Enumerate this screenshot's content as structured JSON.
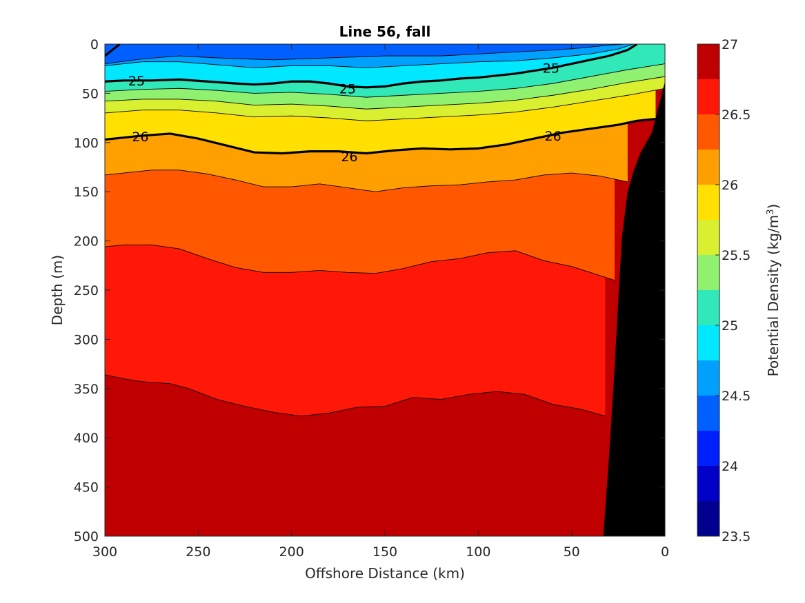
{
  "chart_data": {
    "type": "contour",
    "title": "Line 56, fall",
    "xlabel": "Offshore Distance (km)",
    "ylabel": "Depth (m)",
    "colorbar_label": "Potential Density (kg/m",
    "colorbar_label_sup": "3",
    "colorbar_label_end": ")",
    "xlim": [
      300,
      0
    ],
    "ylim": [
      0,
      500
    ],
    "x_reversed": true,
    "y_reversed": true,
    "xticks": [
      300,
      250,
      200,
      150,
      100,
      50,
      0
    ],
    "xtick_labels": [
      "300",
      "250",
      "200",
      "150",
      "100",
      "50",
      "0"
    ],
    "yticks": [
      0,
      50,
      100,
      150,
      200,
      250,
      300,
      350,
      400,
      450,
      500
    ],
    "ytick_labels": [
      "0",
      "50",
      "100",
      "150",
      "200",
      "250",
      "300",
      "350",
      "400",
      "450",
      "500"
    ],
    "colorbar_ticks": [
      23.5,
      24,
      24.5,
      25,
      25.5,
      26,
      26.5,
      27
    ],
    "colorbar_tick_labels": [
      "23.5",
      "24",
      "24.5",
      "25",
      "25.5",
      "26",
      "26.5",
      "27"
    ],
    "color_levels": [
      {
        "range": [
          23.5,
          23.75
        ],
        "color": "#00008F"
      },
      {
        "range": [
          23.75,
          24.0
        ],
        "color": "#0000C6"
      },
      {
        "range": [
          24.0,
          24.25
        ],
        "color": "#0020FF"
      },
      {
        "range": [
          24.25,
          24.5
        ],
        "color": "#0060FF"
      },
      {
        "range": [
          24.5,
          24.75
        ],
        "color": "#00A0FF"
      },
      {
        "range": [
          24.75,
          25.0
        ],
        "color": "#00E8FF"
      },
      {
        "range": [
          25.0,
          25.25
        ],
        "color": "#30E8B8"
      },
      {
        "range": [
          25.25,
          25.5
        ],
        "color": "#90F070"
      },
      {
        "range": [
          25.5,
          25.75
        ],
        "color": "#D8F030"
      },
      {
        "range": [
          25.75,
          26.0
        ],
        "color": "#FFE000"
      },
      {
        "range": [
          26.0,
          26.25
        ],
        "color": "#FFA000"
      },
      {
        "range": [
          26.25,
          26.5
        ],
        "color": "#FF5800"
      },
      {
        "range": [
          26.5,
          26.75
        ],
        "color": "#FF1808"
      },
      {
        "range": [
          26.75,
          27.0
        ],
        "color": "#C00000"
      }
    ],
    "isopycnals": [
      {
        "sigma": 24.5,
        "labeled": false,
        "x": [
          300,
          280,
          260,
          240,
          210,
          180,
          150,
          120,
          100,
          80,
          60,
          45,
          30,
          22
        ],
        "depth": [
          20,
          15,
          12,
          14,
          16,
          14,
          12,
          12,
          10,
          8,
          6,
          4,
          1,
          0
        ]
      },
      {
        "sigma": 24.75,
        "labeled": false,
        "x": [
          300,
          280,
          260,
          240,
          220,
          200,
          180,
          160,
          140,
          120,
          100,
          80,
          60,
          40,
          25,
          17
        ],
        "depth": [
          22,
          18,
          18,
          21,
          24,
          22,
          22,
          24,
          22,
          20,
          18,
          17,
          14,
          10,
          5,
          0
        ]
      },
      {
        "sigma": 25.0,
        "labeled": true,
        "label_at": [
          [
            283,
            37
          ],
          [
            170,
            45
          ],
          [
            61,
            24
          ]
        ],
        "x": [
          300,
          290,
          275,
          260,
          245,
          230,
          220,
          210,
          200,
          190,
          180,
          170,
          160,
          150,
          140,
          130,
          120,
          110,
          100,
          90,
          80,
          70,
          60,
          50,
          40,
          30,
          20,
          15
        ],
        "depth": [
          38,
          37,
          37,
          36,
          38,
          40,
          41,
          40,
          38,
          38,
          40,
          43,
          44,
          43,
          40,
          38,
          37,
          35,
          34,
          32,
          30,
          27,
          24,
          20,
          16,
          12,
          6,
          0
        ]
      },
      {
        "sigma": 25.25,
        "labeled": false,
        "x": [
          300,
          280,
          260,
          240,
          220,
          200,
          180,
          160,
          140,
          120,
          100,
          80,
          60,
          40,
          20,
          0
        ],
        "depth": [
          48,
          46,
          45,
          47,
          50,
          49,
          51,
          54,
          52,
          50,
          48,
          45,
          40,
          33,
          26,
          20
        ]
      },
      {
        "sigma": 25.5,
        "labeled": false,
        "x": [
          300,
          280,
          260,
          240,
          220,
          200,
          180,
          160,
          140,
          120,
          100,
          80,
          60,
          40,
          20,
          0
        ],
        "depth": [
          58,
          56,
          56,
          58,
          62,
          61,
          63,
          66,
          64,
          62,
          60,
          57,
          52,
          46,
          39,
          33
        ]
      },
      {
        "sigma": 25.75,
        "labeled": false,
        "x": [
          300,
          280,
          260,
          240,
          220,
          200,
          180,
          160,
          140,
          120,
          100,
          80,
          60,
          40,
          20,
          0
        ],
        "depth": [
          70,
          67,
          67,
          70,
          74,
          73,
          75,
          78,
          76,
          74,
          72,
          69,
          64,
          58,
          52,
          45
        ]
      },
      {
        "sigma": 26.0,
        "labeled": true,
        "label_at": [
          [
            281,
            94
          ],
          [
            169,
            114
          ],
          [
            60,
            93
          ]
        ],
        "x": [
          300,
          290,
          280,
          265,
          250,
          235,
          220,
          205,
          190,
          175,
          160,
          145,
          130,
          115,
          100,
          85,
          70,
          55,
          40,
          25,
          15,
          5
        ],
        "depth": [
          97,
          95,
          93,
          91,
          96,
          103,
          110,
          111,
          109,
          109,
          111,
          108,
          106,
          107,
          106,
          102,
          96,
          90,
          86,
          82,
          78,
          76
        ]
      },
      {
        "sigma": 26.25,
        "labeled": false,
        "x": [
          300,
          290,
          275,
          260,
          245,
          230,
          215,
          200,
          185,
          170,
          155,
          140,
          125,
          110,
          95,
          80,
          65,
          50,
          35,
          20
        ],
        "depth": [
          133,
          131,
          128,
          128,
          132,
          138,
          145,
          145,
          142,
          146,
          150,
          146,
          144,
          143,
          140,
          138,
          133,
          131,
          134,
          140
        ]
      },
      {
        "sigma": 26.5,
        "labeled": false,
        "x": [
          300,
          290,
          275,
          260,
          245,
          230,
          215,
          200,
          185,
          170,
          155,
          140,
          125,
          110,
          95,
          80,
          65,
          50,
          40,
          27
        ],
        "depth": [
          206,
          204,
          204,
          208,
          218,
          227,
          232,
          232,
          230,
          232,
          233,
          228,
          221,
          218,
          212,
          210,
          220,
          226,
          232,
          240
        ]
      },
      {
        "sigma": 26.75,
        "labeled": false,
        "x": [
          300,
          290,
          280,
          265,
          255,
          240,
          225,
          210,
          195,
          180,
          165,
          150,
          135,
          120,
          105,
          90,
          75,
          60,
          45,
          32
        ],
        "depth": [
          336,
          340,
          343,
          345,
          350,
          361,
          368,
          374,
          378,
          375,
          369,
          368,
          359,
          361,
          356,
          353,
          356,
          366,
          371,
          378
        ]
      }
    ],
    "bathymetry_color": "#000000",
    "bathymetry": {
      "x": [
        33,
        30,
        27,
        25,
        23,
        20,
        17,
        13,
        7,
        0,
        0
      ],
      "depth": [
        500,
        420,
        330,
        260,
        195,
        150,
        130,
        110,
        90,
        38,
        500
      ]
    }
  }
}
